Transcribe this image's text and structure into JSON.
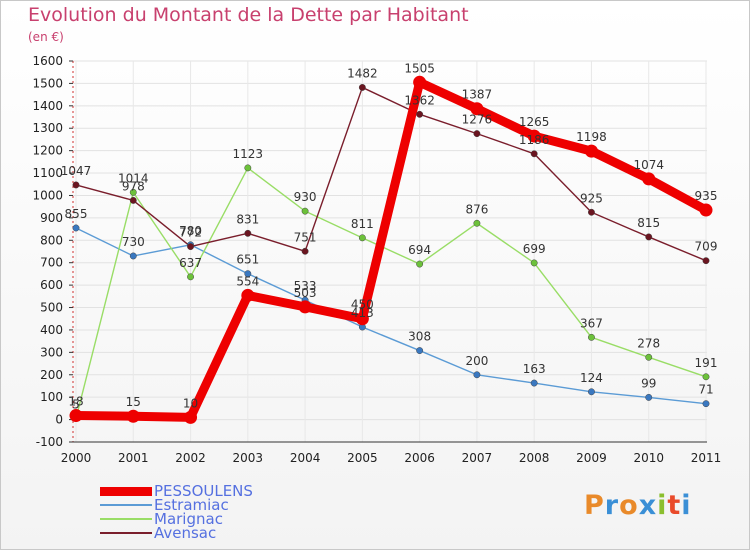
{
  "chart_data": {
    "type": "line",
    "title": "Evolution du Montant de la Dette par Habitant",
    "subtitle": "(en €)",
    "xlabel": "",
    "ylabel": "",
    "x": [
      "2000",
      "2001",
      "2002",
      "2003",
      "2004",
      "2005",
      "2006",
      "2007",
      "2008",
      "2009",
      "2010",
      "2011"
    ],
    "ylim": [
      -100,
      1600
    ],
    "yticks": [
      -100,
      0,
      100,
      200,
      300,
      400,
      500,
      600,
      700,
      800,
      900,
      1000,
      1100,
      1200,
      1300,
      1400,
      1500,
      1600
    ],
    "grid": true,
    "legend_position": "bottom-left",
    "series": [
      {
        "name": "Estramiac",
        "color": "#5b9bd5",
        "point_color": "#3a78c0",
        "values": [
          855,
          730,
          780,
          651,
          533,
          413,
          308,
          200,
          163,
          124,
          99,
          71
        ]
      },
      {
        "name": "Marignac",
        "color": "#99dd66",
        "point_color": "#6cc13a",
        "values": [
          5,
          1014,
          637,
          1123,
          930,
          811,
          694,
          876,
          699,
          367,
          278,
          191
        ]
      },
      {
        "name": "Avensac",
        "color": "#7a1e2c",
        "point_color": "#6b1520",
        "values": [
          1047,
          978,
          772,
          831,
          751,
          1482,
          1362,
          1276,
          1186,
          925,
          815,
          709
        ]
      },
      {
        "name": "PESSOULENS",
        "color": "#ee0000",
        "point_color": "#ee0000",
        "values": [
          18,
          15,
          10,
          554,
          503,
          450,
          1505,
          1387,
          1265,
          1198,
          1074,
          935
        ]
      }
    ],
    "legend_order": [
      "PESSOULENS",
      "Estramiac",
      "Marignac",
      "Avensac"
    ]
  },
  "logo": {
    "text": "Proxiti",
    "letters": [
      "P",
      "r",
      "o",
      "x",
      "i",
      "t",
      "i"
    ],
    "colors": [
      "#e98a2a",
      "#3a8fd6",
      "#e98a2a",
      "#3a8fd6",
      "#8bbf2e",
      "#e94a2a",
      "#3a8fd6"
    ]
  }
}
